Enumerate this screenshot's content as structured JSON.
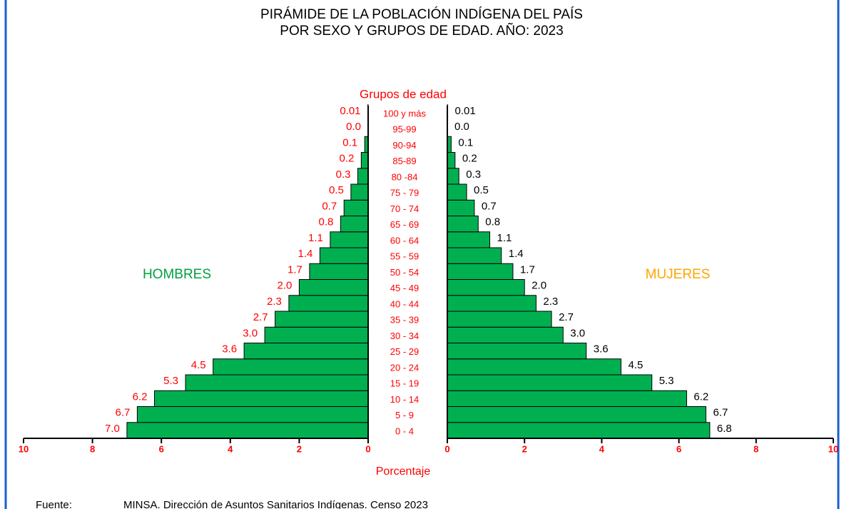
{
  "chart_data": {
    "type": "pyramid",
    "title": [
      "PIRÁMIDE DE LA POBLACIÓN INDÍGENA DEL PAÍS",
      "POR SEXO Y GRUPOS DE EDAD. AÑO:  2023"
    ],
    "categories_title": "Grupos de edad",
    "categories": [
      "0 - 4",
      "5 - 9",
      "10 - 14",
      "15 - 19",
      "20 - 24",
      "25 - 29",
      "30 - 34",
      "35 - 39",
      "40 - 44",
      "45 - 49",
      "50 - 54",
      "55 - 59",
      "60 - 64",
      "65 - 69",
      "70 - 74",
      "75 - 79",
      "80 -84",
      "85-89",
      "90-94",
      "95-99",
      "100 y más"
    ],
    "series": [
      {
        "name": "HOMBRES",
        "color": "#00b050",
        "label_color": "#00a040",
        "value_label_color": "#ff0000",
        "values": [
          7.0,
          6.7,
          6.2,
          5.3,
          4.5,
          3.6,
          3.0,
          2.7,
          2.3,
          2.0,
          1.7,
          1.4,
          1.1,
          0.8,
          0.7,
          0.5,
          0.3,
          0.2,
          0.1,
          0.0,
          0.01
        ],
        "value_labels": [
          "7.0",
          "6.7",
          "6.2",
          "5.3",
          "4.5",
          "3.6",
          "3.0",
          "2.7",
          "2.3",
          "2.0",
          "1.7",
          "1.4",
          "1.1",
          "0.8",
          "0.7",
          "0.5",
          "0.3",
          "0.2",
          "0.1",
          "0.0",
          "0.01"
        ]
      },
      {
        "name": "MUJERES",
        "color": "#00b050",
        "label_color": "#ffa500",
        "value_label_color": "#000000",
        "values": [
          6.8,
          6.7,
          6.2,
          5.3,
          4.5,
          3.6,
          3.0,
          2.7,
          2.3,
          2.0,
          1.7,
          1.4,
          1.1,
          0.8,
          0.7,
          0.5,
          0.3,
          0.2,
          0.1,
          0.0,
          0.01
        ],
        "value_labels": [
          "6.8",
          "6.7",
          "6.2",
          "5.3",
          "4.5",
          "3.6",
          "3.0",
          "2.7",
          "2.3",
          "2.0",
          "1.7",
          "1.4",
          "1.1",
          "0.8",
          "0.7",
          "0.5",
          "0.3",
          "0.2",
          "0.1",
          "0.0",
          "0.01"
        ]
      }
    ],
    "xlim": [
      0,
      10
    ],
    "xticks": [
      0,
      2,
      4,
      6,
      8,
      10
    ],
    "xlabel": "Porcentaje",
    "source_label": "Fuente:",
    "source": "MINSA. Dirección de Asuntos Sanitarios Indígenas. Censo 2023"
  }
}
